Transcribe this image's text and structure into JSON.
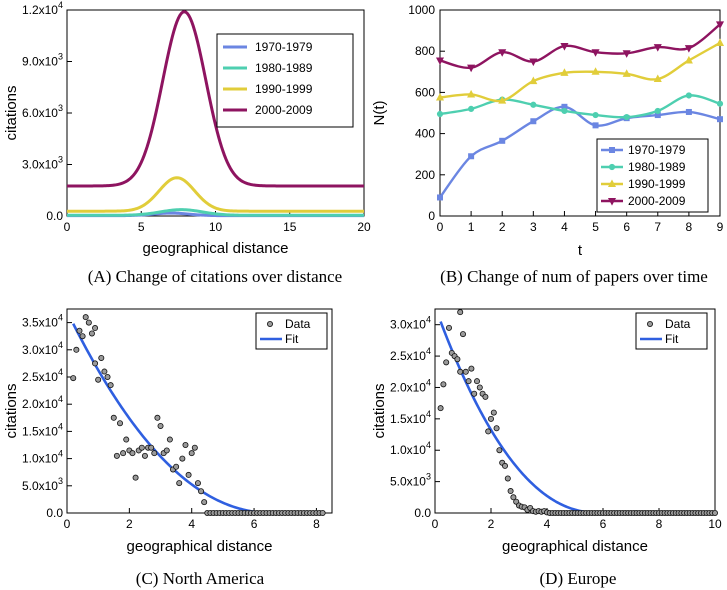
{
  "chart_data": [
    {
      "id": "A",
      "type": "line",
      "caption": "(A) Change of citations over distance",
      "xlabel": "geographical distance",
      "ylabel": "citations",
      "xlim": [
        0,
        20
      ],
      "ylim": [
        0,
        12000
      ],
      "xticks": [
        "0",
        "5",
        "10",
        "15",
        "20"
      ],
      "yticks": [
        {
          "value": 0,
          "mantissa": "0.0",
          "exp": ""
        },
        {
          "value": 3000,
          "mantissa": "3.0x10",
          "exp": "3"
        },
        {
          "value": 6000,
          "mantissa": "6.0x10",
          "exp": "3"
        },
        {
          "value": 9000,
          "mantissa": "9.0x10",
          "exp": "3"
        },
        {
          "value": 12000,
          "mantissa": "1.2x10",
          "exp": "4"
        }
      ],
      "legend_position": "top-right",
      "series": [
        {
          "name": "1970-1979",
          "color": "#6b86e2",
          "base": 20,
          "peak": 150,
          "center": 7.0,
          "width": 1.2
        },
        {
          "name": "1980-1989",
          "color": "#4ecfb0",
          "base": 40,
          "peak": 330,
          "center": 7.7,
          "width": 1.4
        },
        {
          "name": "1990-1999",
          "color": "#e1cd3a",
          "base": 280,
          "peak": 1950,
          "center": 7.4,
          "width": 1.2
        },
        {
          "name": "2000-2009",
          "color": "#8e1460",
          "base": 1750,
          "peak": 10150,
          "center": 7.9,
          "width": 1.45
        }
      ]
    },
    {
      "id": "B",
      "type": "line",
      "caption": "(B) Change of num of papers over time",
      "xlabel": "t",
      "ylabel": "N(t)",
      "xlim": [
        0,
        9
      ],
      "ylim": [
        0,
        1000
      ],
      "xticks": [
        "0",
        "1",
        "2",
        "3",
        "4",
        "5",
        "6",
        "7",
        "8",
        "9"
      ],
      "yticks": [
        "0",
        "200",
        "400",
        "600",
        "800",
        "1000"
      ],
      "legend_position": "bottom-right",
      "x": [
        0,
        1,
        2,
        3,
        4,
        5,
        6,
        7,
        8,
        9
      ],
      "series": [
        {
          "name": "1970-1979",
          "color": "#6b86e2",
          "marker": "square",
          "values": [
            90,
            290,
            365,
            460,
            530,
            440,
            475,
            490,
            505,
            470
          ]
        },
        {
          "name": "1980-1989",
          "color": "#4ecfb0",
          "marker": "circle",
          "values": [
            495,
            520,
            565,
            540,
            510,
            490,
            480,
            510,
            585,
            545
          ]
        },
        {
          "name": "1990-1999",
          "color": "#e1cd3a",
          "marker": "triangle",
          "values": [
            575,
            590,
            560,
            655,
            695,
            700,
            690,
            665,
            755,
            840
          ]
        },
        {
          "name": "2000-2009",
          "color": "#8e1460",
          "marker": "tri-down",
          "values": [
            755,
            720,
            795,
            750,
            825,
            795,
            790,
            820,
            815,
            930
          ]
        }
      ]
    },
    {
      "id": "C",
      "type": "scatter",
      "caption": "(C) North America",
      "xlabel": "geographical distance",
      "ylabel": "citations",
      "xlim": [
        0,
        8.5
      ],
      "ylim": [
        0,
        37500
      ],
      "xticks": [
        0,
        2,
        4,
        6,
        8
      ],
      "yticks": [
        {
          "value": 0,
          "mantissa": "0.0",
          "exp": ""
        },
        {
          "value": 5000,
          "mantissa": "5.0x10",
          "exp": "3"
        },
        {
          "value": 10000,
          "mantissa": "1.0x10",
          "exp": "4"
        },
        {
          "value": 15000,
          "mantissa": "1.5x10",
          "exp": "4"
        },
        {
          "value": 20000,
          "mantissa": "2.0x10",
          "exp": "4"
        },
        {
          "value": 25000,
          "mantissa": "2.5x10",
          "exp": "4"
        },
        {
          "value": 30000,
          "mantissa": "3.0x10",
          "exp": "4"
        },
        {
          "value": 35000,
          "mantissa": "3.5x10",
          "exp": "4"
        }
      ],
      "legend_position": "top-right",
      "legend": [
        "Data",
        "Fit"
      ],
      "fit": {
        "name": "Fit",
        "color": "#2f5fe0",
        "x_start": 0.2,
        "y_start": 34800,
        "x_end": 6.6,
        "power": 2.1
      },
      "points": [
        [
          0.2,
          24800
        ],
        [
          0.3,
          30000
        ],
        [
          0.4,
          33500
        ],
        [
          0.5,
          32500
        ],
        [
          0.6,
          36000
        ],
        [
          0.7,
          35000
        ],
        [
          0.8,
          33000
        ],
        [
          0.9,
          34000
        ],
        [
          0.9,
          27500
        ],
        [
          1.0,
          24500
        ],
        [
          1.1,
          28500
        ],
        [
          1.2,
          26000
        ],
        [
          1.3,
          25000
        ],
        [
          1.4,
          23500
        ],
        [
          1.5,
          17500
        ],
        [
          1.6,
          10500
        ],
        [
          1.7,
          16500
        ],
        [
          1.8,
          11000
        ],
        [
          1.9,
          13500
        ],
        [
          2.0,
          11500
        ],
        [
          2.1,
          11000
        ],
        [
          2.2,
          6500
        ],
        [
          2.3,
          11500
        ],
        [
          2.4,
          12000
        ],
        [
          2.5,
          10500
        ],
        [
          2.6,
          12000
        ],
        [
          2.7,
          12000
        ],
        [
          2.8,
          11000
        ],
        [
          2.9,
          17500
        ],
        [
          3.0,
          16000
        ],
        [
          3.1,
          11000
        ],
        [
          3.2,
          11500
        ],
        [
          3.3,
          13500
        ],
        [
          3.4,
          8000
        ],
        [
          3.5,
          8500
        ],
        [
          3.6,
          5500
        ],
        [
          3.7,
          10000
        ],
        [
          3.8,
          12500
        ],
        [
          3.9,
          7000
        ],
        [
          4.0,
          11000
        ],
        [
          4.1,
          12000
        ],
        [
          4.2,
          5500
        ],
        [
          4.3,
          4000
        ],
        [
          4.4,
          2000
        ],
        [
          4.5,
          0
        ],
        [
          4.6,
          0
        ],
        [
          4.7,
          0
        ],
        [
          4.8,
          0
        ],
        [
          4.9,
          0
        ],
        [
          5.0,
          0
        ],
        [
          5.1,
          0
        ],
        [
          5.2,
          0
        ],
        [
          5.3,
          0
        ],
        [
          5.4,
          0
        ],
        [
          5.5,
          0
        ],
        [
          5.6,
          0
        ],
        [
          5.7,
          0
        ],
        [
          5.8,
          0
        ],
        [
          5.9,
          0
        ],
        [
          6.0,
          0
        ],
        [
          6.1,
          0
        ],
        [
          6.2,
          0
        ],
        [
          6.3,
          0
        ],
        [
          6.4,
          0
        ],
        [
          6.5,
          0
        ],
        [
          6.6,
          0
        ],
        [
          6.7,
          0
        ],
        [
          6.8,
          0
        ],
        [
          6.9,
          0
        ],
        [
          7.0,
          0
        ],
        [
          7.1,
          0
        ],
        [
          7.2,
          0
        ],
        [
          7.3,
          0
        ],
        [
          7.4,
          0
        ],
        [
          7.5,
          0
        ],
        [
          7.6,
          0
        ],
        [
          7.7,
          0
        ],
        [
          7.8,
          0
        ],
        [
          7.9,
          0
        ],
        [
          8.0,
          0
        ],
        [
          8.1,
          0
        ],
        [
          8.2,
          0
        ]
      ]
    },
    {
      "id": "D",
      "type": "scatter",
      "caption": "(D) Europe",
      "xlabel": "geographical distance",
      "ylabel": "citations",
      "xlim": [
        0,
        10
      ],
      "ylim": [
        0,
        32500
      ],
      "xticks": [
        0,
        2,
        4,
        6,
        8,
        10
      ],
      "yticks": [
        {
          "value": 0,
          "mantissa": "0.0",
          "exp": ""
        },
        {
          "value": 5000,
          "mantissa": "5.0x10",
          "exp": "3"
        },
        {
          "value": 10000,
          "mantissa": "1.0x10",
          "exp": "4"
        },
        {
          "value": 15000,
          "mantissa": "1.5x10",
          "exp": "4"
        },
        {
          "value": 20000,
          "mantissa": "2.0x10",
          "exp": "4"
        },
        {
          "value": 25000,
          "mantissa": "2.5x10",
          "exp": "4"
        },
        {
          "value": 30000,
          "mantissa": "3.0x10",
          "exp": "4"
        }
      ],
      "legend_position": "top-right",
      "legend": [
        "Data",
        "Fit"
      ],
      "fit": {
        "name": "Fit",
        "color": "#2f5fe0",
        "x_start": 0.2,
        "y_start": 30500,
        "x_end": 5.9,
        "power": 2.2
      },
      "points": [
        [
          0.2,
          16700
        ],
        [
          0.3,
          20500
        ],
        [
          0.4,
          24000
        ],
        [
          0.5,
          29500
        ],
        [
          0.6,
          25500
        ],
        [
          0.7,
          25000
        ],
        [
          0.8,
          24500
        ],
        [
          0.9,
          22500
        ],
        [
          0.9,
          32000
        ],
        [
          1.0,
          28500
        ],
        [
          1.1,
          22500
        ],
        [
          1.2,
          21000
        ],
        [
          1.3,
          23000
        ],
        [
          1.4,
          19000
        ],
        [
          1.5,
          21000
        ],
        [
          1.6,
          20000
        ],
        [
          1.7,
          19000
        ],
        [
          1.8,
          18500
        ],
        [
          1.9,
          13000
        ],
        [
          2.0,
          15000
        ],
        [
          2.1,
          16000
        ],
        [
          2.2,
          13500
        ],
        [
          2.3,
          10000
        ],
        [
          2.4,
          8000
        ],
        [
          2.5,
          7500
        ],
        [
          2.6,
          5500
        ],
        [
          2.7,
          3500
        ],
        [
          2.8,
          2500
        ],
        [
          2.9,
          1800
        ],
        [
          3.0,
          1200
        ],
        [
          3.1,
          1000
        ],
        [
          3.2,
          900
        ],
        [
          3.3,
          500
        ],
        [
          3.4,
          800
        ],
        [
          3.5,
          300
        ],
        [
          3.6,
          200
        ],
        [
          3.7,
          300
        ],
        [
          3.8,
          200
        ],
        [
          3.9,
          300
        ],
        [
          4.0,
          100
        ],
        [
          4.1,
          0
        ],
        [
          4.2,
          0
        ],
        [
          4.3,
          0
        ],
        [
          4.4,
          0
        ],
        [
          4.5,
          0
        ],
        [
          4.6,
          0
        ],
        [
          4.7,
          0
        ],
        [
          4.8,
          0
        ],
        [
          4.9,
          0
        ],
        [
          5.0,
          0
        ],
        [
          5.1,
          0
        ],
        [
          5.2,
          0
        ],
        [
          5.3,
          0
        ],
        [
          5.4,
          0
        ],
        [
          5.5,
          0
        ],
        [
          5.6,
          0
        ],
        [
          5.7,
          0
        ],
        [
          5.8,
          0
        ],
        [
          5.9,
          0
        ],
        [
          6.0,
          0
        ],
        [
          6.1,
          0
        ],
        [
          6.2,
          0
        ],
        [
          6.3,
          0
        ],
        [
          6.4,
          0
        ],
        [
          6.5,
          0
        ],
        [
          6.6,
          0
        ],
        [
          6.7,
          0
        ],
        [
          6.8,
          0
        ],
        [
          6.9,
          0
        ],
        [
          7.0,
          0
        ],
        [
          7.1,
          0
        ],
        [
          7.2,
          0
        ],
        [
          7.3,
          0
        ],
        [
          7.4,
          0
        ],
        [
          7.5,
          0
        ],
        [
          7.6,
          0
        ],
        [
          7.7,
          0
        ],
        [
          7.8,
          0
        ],
        [
          7.9,
          0
        ],
        [
          8.0,
          0
        ],
        [
          8.1,
          0
        ],
        [
          8.2,
          0
        ],
        [
          8.3,
          0
        ],
        [
          8.4,
          0
        ],
        [
          8.5,
          0
        ],
        [
          8.6,
          0
        ],
        [
          8.7,
          0
        ],
        [
          8.8,
          0
        ],
        [
          8.9,
          0
        ],
        [
          9.0,
          0
        ],
        [
          9.1,
          0
        ],
        [
          9.2,
          0
        ],
        [
          9.3,
          0
        ],
        [
          9.4,
          0
        ],
        [
          9.5,
          0
        ],
        [
          9.6,
          0
        ],
        [
          9.7,
          0
        ],
        [
          9.8,
          0
        ],
        [
          9.9,
          0
        ],
        [
          10.0,
          0
        ]
      ]
    }
  ]
}
